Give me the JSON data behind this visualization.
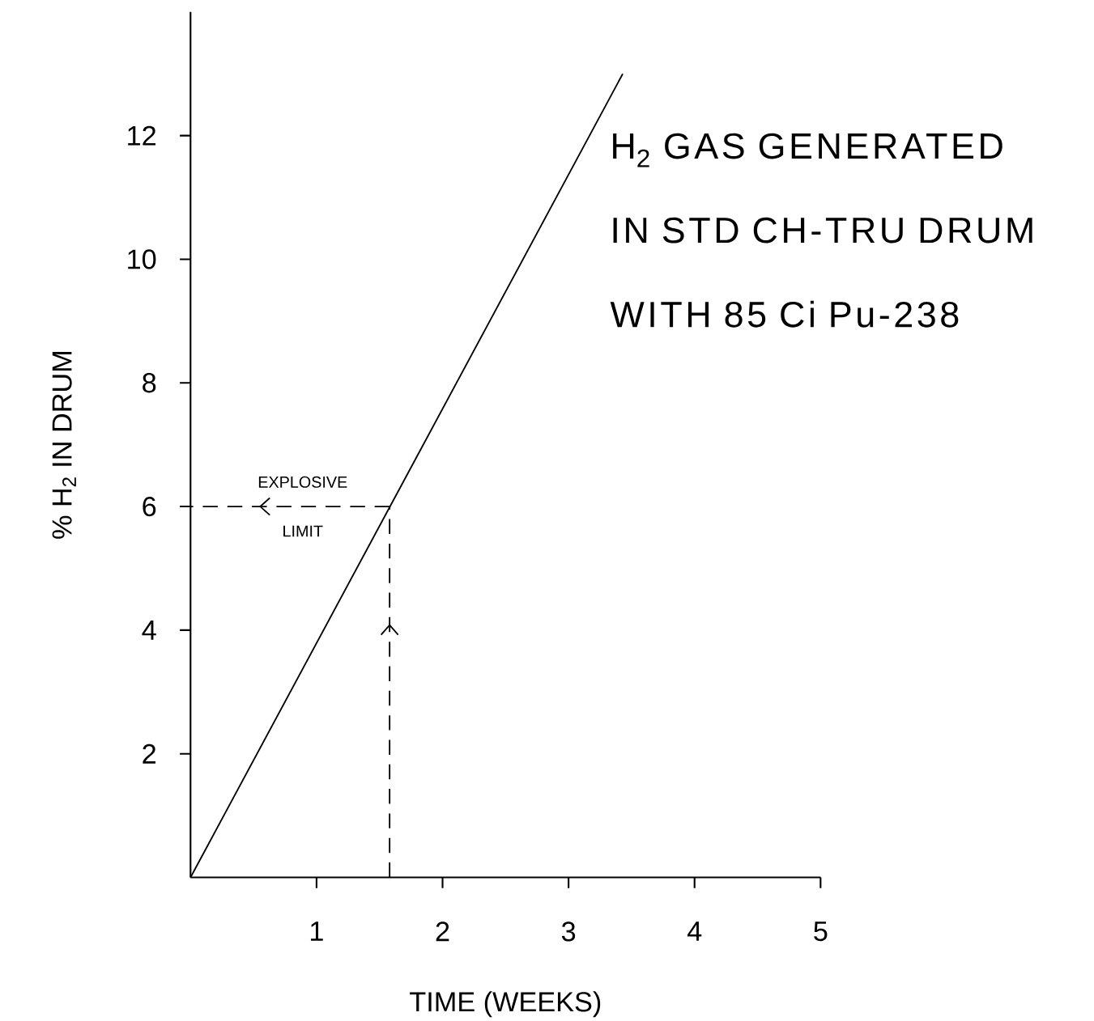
{
  "chart_data": {
    "type": "line",
    "xlabel": "TIME (WEEKS)",
    "ylabel": "% H$_{2}$ IN DRUM",
    "x": [
      0,
      3.43
    ],
    "values": [
      0,
      13
    ],
    "color": "#000000",
    "line_style": "solid",
    "marker": "none",
    "xlim": [
      0,
      5
    ],
    "ylim": [
      0,
      14
    ],
    "xticks": [
      1,
      2,
      3,
      4,
      5
    ],
    "yticks": [
      2,
      4,
      6,
      8,
      10,
      12
    ],
    "grid": false,
    "ref_lines": [
      {
        "axis": "y",
        "value": 6,
        "label": "EXPLOSIVE LIMIT",
        "line_style": "dashed"
      },
      {
        "axis": "x",
        "value": 1.58,
        "line_style": "dashed"
      }
    ],
    "annotations": [
      "H$_{2}$ GAS GENERATED IN STD CH-TRU DRUM WITH 85 Ci Pu-238"
    ]
  }
}
